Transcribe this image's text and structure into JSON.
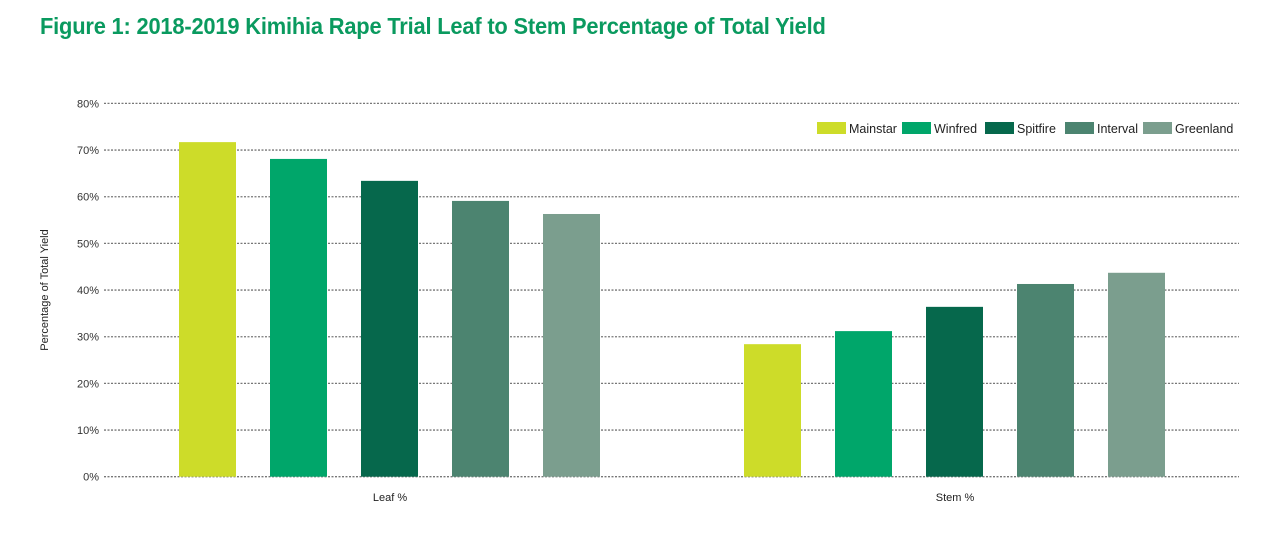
{
  "chart_data": {
    "type": "bar",
    "title": "Figure 1: 2018-2019 Kimihia Rape Trial Leaf to Stem Percentage of Total Yield",
    "xlabel": "",
    "ylabel": "Percentage of Total Yield",
    "categories": [
      "Leaf %",
      "Stem %"
    ],
    "ylim": [
      0,
      80
    ],
    "yticks": [
      0,
      10,
      20,
      30,
      40,
      50,
      60,
      70,
      80
    ],
    "ytick_labels": [
      "0%",
      "10%",
      "20%",
      "30%",
      "40%",
      "50%",
      "60%",
      "70%",
      "80%"
    ],
    "grid": true,
    "legend_position": "top-right",
    "series": [
      {
        "name": "Mainstar",
        "color": "#cddc29",
        "values": [
          71.7,
          28.4
        ]
      },
      {
        "name": "Winfred",
        "color": "#00a66a",
        "values": [
          68.1,
          31.2
        ]
      },
      {
        "name": "Spitfire",
        "color": "#06684c",
        "values": [
          63.4,
          36.4
        ]
      },
      {
        "name": "Interval",
        "color": "#4c8470",
        "values": [
          59.1,
          41.3
        ]
      },
      {
        "name": "Greenland",
        "color": "#7b9e8e",
        "values": [
          56.3,
          43.7
        ]
      }
    ]
  }
}
